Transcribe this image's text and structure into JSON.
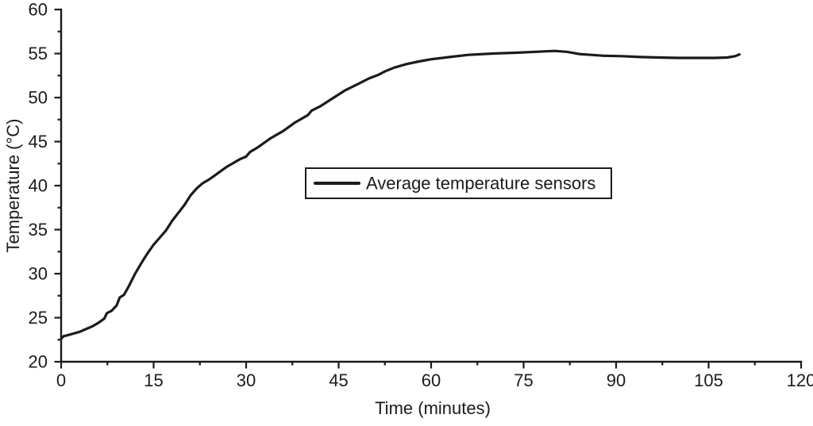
{
  "chart_data": {
    "type": "line",
    "title": "",
    "xlabel": "Time (minutes)",
    "ylabel": "Temperature (°C)",
    "xlim": [
      0,
      120
    ],
    "ylim": [
      20,
      60
    ],
    "x_ticks": [
      0,
      15,
      30,
      45,
      60,
      75,
      90,
      105,
      120
    ],
    "y_ticks": [
      20,
      25,
      30,
      35,
      40,
      45,
      50,
      55,
      60
    ],
    "x_minor_ticks": [
      7.5,
      22.5,
      37.5,
      52.5,
      67.5,
      82.5,
      97.5,
      112.5
    ],
    "y_minor_ticks": [
      22.5,
      27.5,
      32.5,
      37.5,
      42.5,
      47.5,
      52.5,
      57.5
    ],
    "grid": false,
    "line_color": "#1b1b1b",
    "legend": {
      "position": "center",
      "label": "Average temperature sensors"
    },
    "series": [
      {
        "name": "Average temperature sensors",
        "points": [
          [
            0,
            22.6
          ],
          [
            0.4,
            22.9
          ],
          [
            1,
            23.0
          ],
          [
            2,
            23.2
          ],
          [
            3,
            23.4
          ],
          [
            4,
            23.7
          ],
          [
            5,
            24.0
          ],
          [
            6,
            24.4
          ],
          [
            7,
            24.9
          ],
          [
            7.4,
            25.5
          ],
          [
            8.2,
            25.8
          ],
          [
            9,
            26.4
          ],
          [
            9.5,
            27.3
          ],
          [
            10.2,
            27.6
          ],
          [
            11,
            28.6
          ],
          [
            12,
            30.0
          ],
          [
            13,
            31.2
          ],
          [
            14,
            32.3
          ],
          [
            15,
            33.3
          ],
          [
            16,
            34.1
          ],
          [
            17,
            34.9
          ],
          [
            18,
            36.0
          ],
          [
            19,
            36.9
          ],
          [
            20,
            37.8
          ],
          [
            21,
            38.9
          ],
          [
            22,
            39.7
          ],
          [
            23,
            40.3
          ],
          [
            24,
            40.7
          ],
          [
            25,
            41.2
          ],
          [
            26,
            41.7
          ],
          [
            27,
            42.2
          ],
          [
            28,
            42.6
          ],
          [
            29,
            43.0
          ],
          [
            30,
            43.3
          ],
          [
            30.6,
            43.8
          ],
          [
            32,
            44.4
          ],
          [
            34,
            45.4
          ],
          [
            36,
            46.2
          ],
          [
            38,
            47.2
          ],
          [
            40,
            48.0
          ],
          [
            40.6,
            48.5
          ],
          [
            42,
            49.0
          ],
          [
            44,
            49.9
          ],
          [
            46,
            50.8
          ],
          [
            48,
            51.5
          ],
          [
            50,
            52.2
          ],
          [
            51.5,
            52.6
          ],
          [
            52.6,
            53.0
          ],
          [
            54,
            53.4
          ],
          [
            56,
            53.8
          ],
          [
            58,
            54.1
          ],
          [
            60,
            54.35
          ],
          [
            63,
            54.6
          ],
          [
            66,
            54.85
          ],
          [
            70,
            55.0
          ],
          [
            74,
            55.1
          ],
          [
            77,
            55.2
          ],
          [
            80,
            55.3
          ],
          [
            82,
            55.2
          ],
          [
            84,
            54.95
          ],
          [
            86,
            54.85
          ],
          [
            88,
            54.75
          ],
          [
            91,
            54.7
          ],
          [
            94,
            54.6
          ],
          [
            97,
            54.55
          ],
          [
            100,
            54.5
          ],
          [
            103,
            54.5
          ],
          [
            106,
            54.5
          ],
          [
            108,
            54.55
          ],
          [
            109.3,
            54.7
          ],
          [
            110,
            54.9
          ]
        ]
      }
    ]
  }
}
